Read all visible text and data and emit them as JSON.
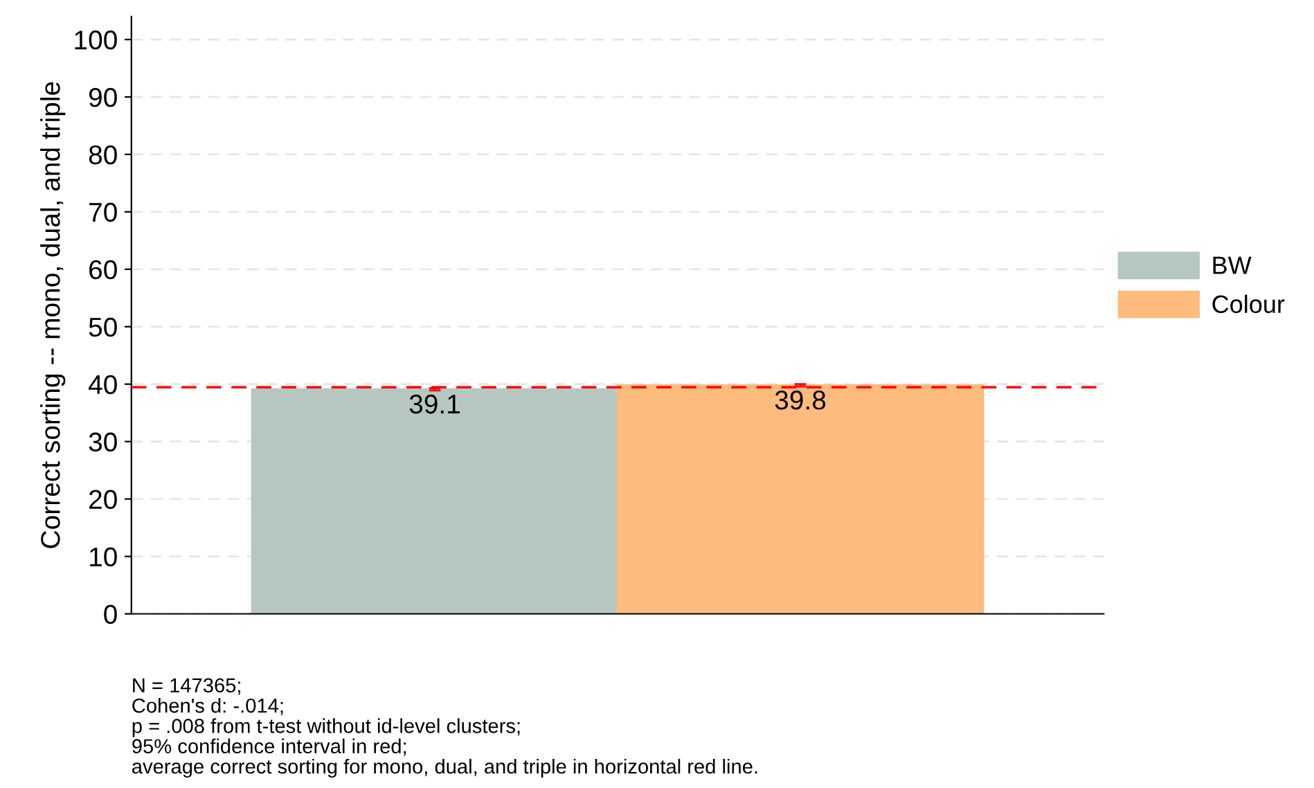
{
  "chart_data": {
    "type": "bar",
    "ylabel": "Correct sorting -- mono, dual, and triple",
    "categories": [
      null
    ],
    "series": [
      {
        "name": "BW",
        "color": "#b5c7c0",
        "values": [
          39.1
        ],
        "errors": [
          0.2
        ]
      },
      {
        "name": "Colour",
        "color": "#fdbb7d",
        "values": [
          39.8
        ],
        "errors": [
          0.2
        ]
      }
    ],
    "ylim": [
      0,
      104
    ],
    "yticks": [
      0,
      10,
      20,
      30,
      40,
      50,
      60,
      70,
      80,
      90,
      100
    ],
    "grid": "y",
    "legend": "right",
    "data_labels": true,
    "tick_labels": "y",
    "ref_lines": [
      {
        "axis": "y",
        "value": 39.45,
        "color": "#ff0000",
        "line_style": "dashed"
      }
    ],
    "annotations": [
      "N = 147365;\nCohen's d: -.014;\np = .008 from t-test without id-level clusters;\n95% confidence interval in red;\naverage correct sorting for mono, dual, and triple in horizontal red line."
    ]
  }
}
